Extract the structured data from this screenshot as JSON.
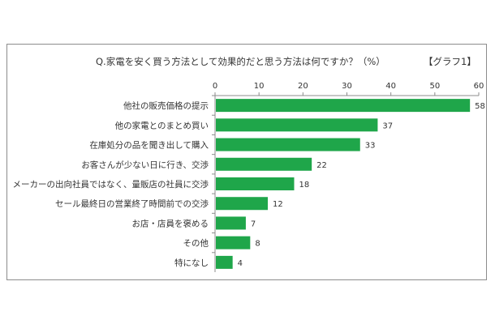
{
  "chart_data": {
    "type": "bar",
    "orientation": "horizontal",
    "title": "Q.家電を安く買う方法として効果的だと思う方法は何ですか？（%）",
    "tag": "【グラフ1】",
    "categories": [
      "他社の販売価格の提示",
      "他の家電とのまとめ買い",
      "在庫処分の品を聞き出して購入",
      "お客さんが少ない日に行き、交渉",
      "メーカーの出向社員ではなく、量販店の社員に交渉",
      "セール最終日の営業終了時間前での交渉",
      "お店・店員を褒める",
      "その他",
      "特になし"
    ],
    "values": [
      58,
      37,
      33,
      22,
      18,
      12,
      7,
      8,
      4
    ],
    "xlim": [
      0,
      60
    ],
    "xticks": [
      0,
      10,
      20,
      30,
      40,
      50,
      60
    ],
    "xaxis_position": "top",
    "grid": false,
    "bar_color": "#1fa64a"
  }
}
